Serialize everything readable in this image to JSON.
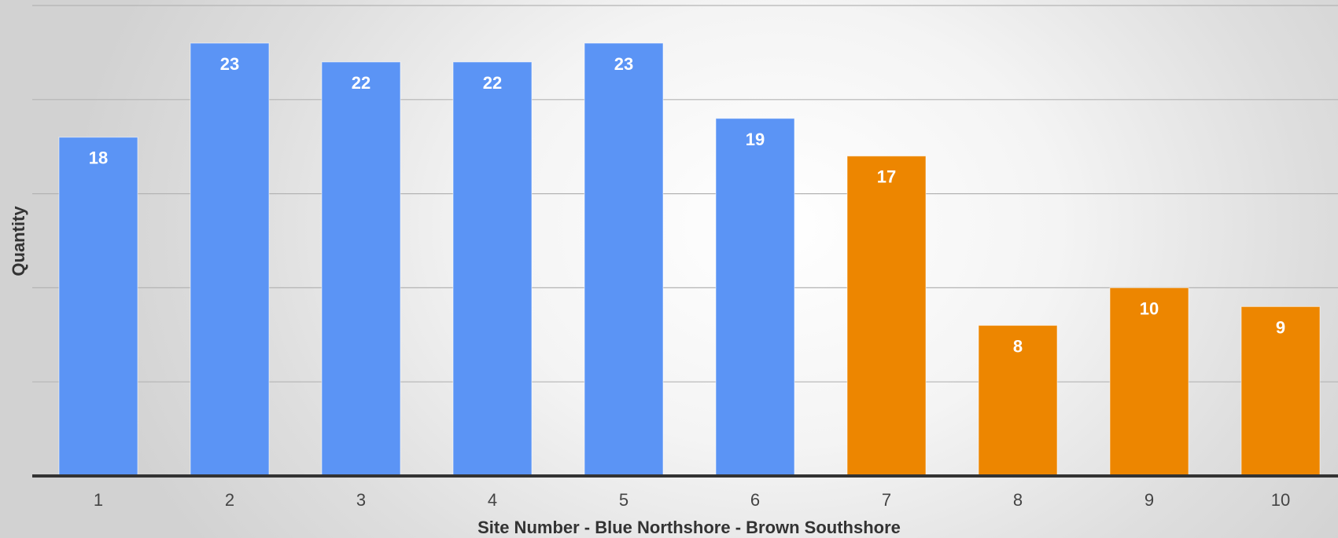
{
  "chart_data": {
    "type": "bar",
    "title": "",
    "xlabel": "Site Number - Blue Northshore - Brown Southshore",
    "ylabel": "Quantity",
    "categories": [
      "1",
      "2",
      "3",
      "4",
      "5",
      "6",
      "7",
      "8",
      "9",
      "10"
    ],
    "values": [
      18,
      23,
      22,
      22,
      23,
      19,
      17,
      8,
      10,
      9
    ],
    "data_labels": [
      "18",
      "23",
      "22",
      "22",
      "23",
      "19",
      "17",
      "8",
      "10",
      "9"
    ],
    "bar_colors": [
      "#5b94f5",
      "#5b94f5",
      "#5b94f5",
      "#5b94f5",
      "#5b94f5",
      "#5b94f5",
      "#ed8600",
      "#ed8600",
      "#ed8600",
      "#ed8600"
    ],
    "series_colors": {
      "Northshore": "#5b94f5",
      "Southshore": "#ed8600"
    },
    "ylim": [
      0,
      25
    ],
    "gridlines": [
      5,
      10,
      15,
      20,
      25
    ],
    "grid": true,
    "y_tick_labels_shown": false,
    "legend": "none"
  }
}
